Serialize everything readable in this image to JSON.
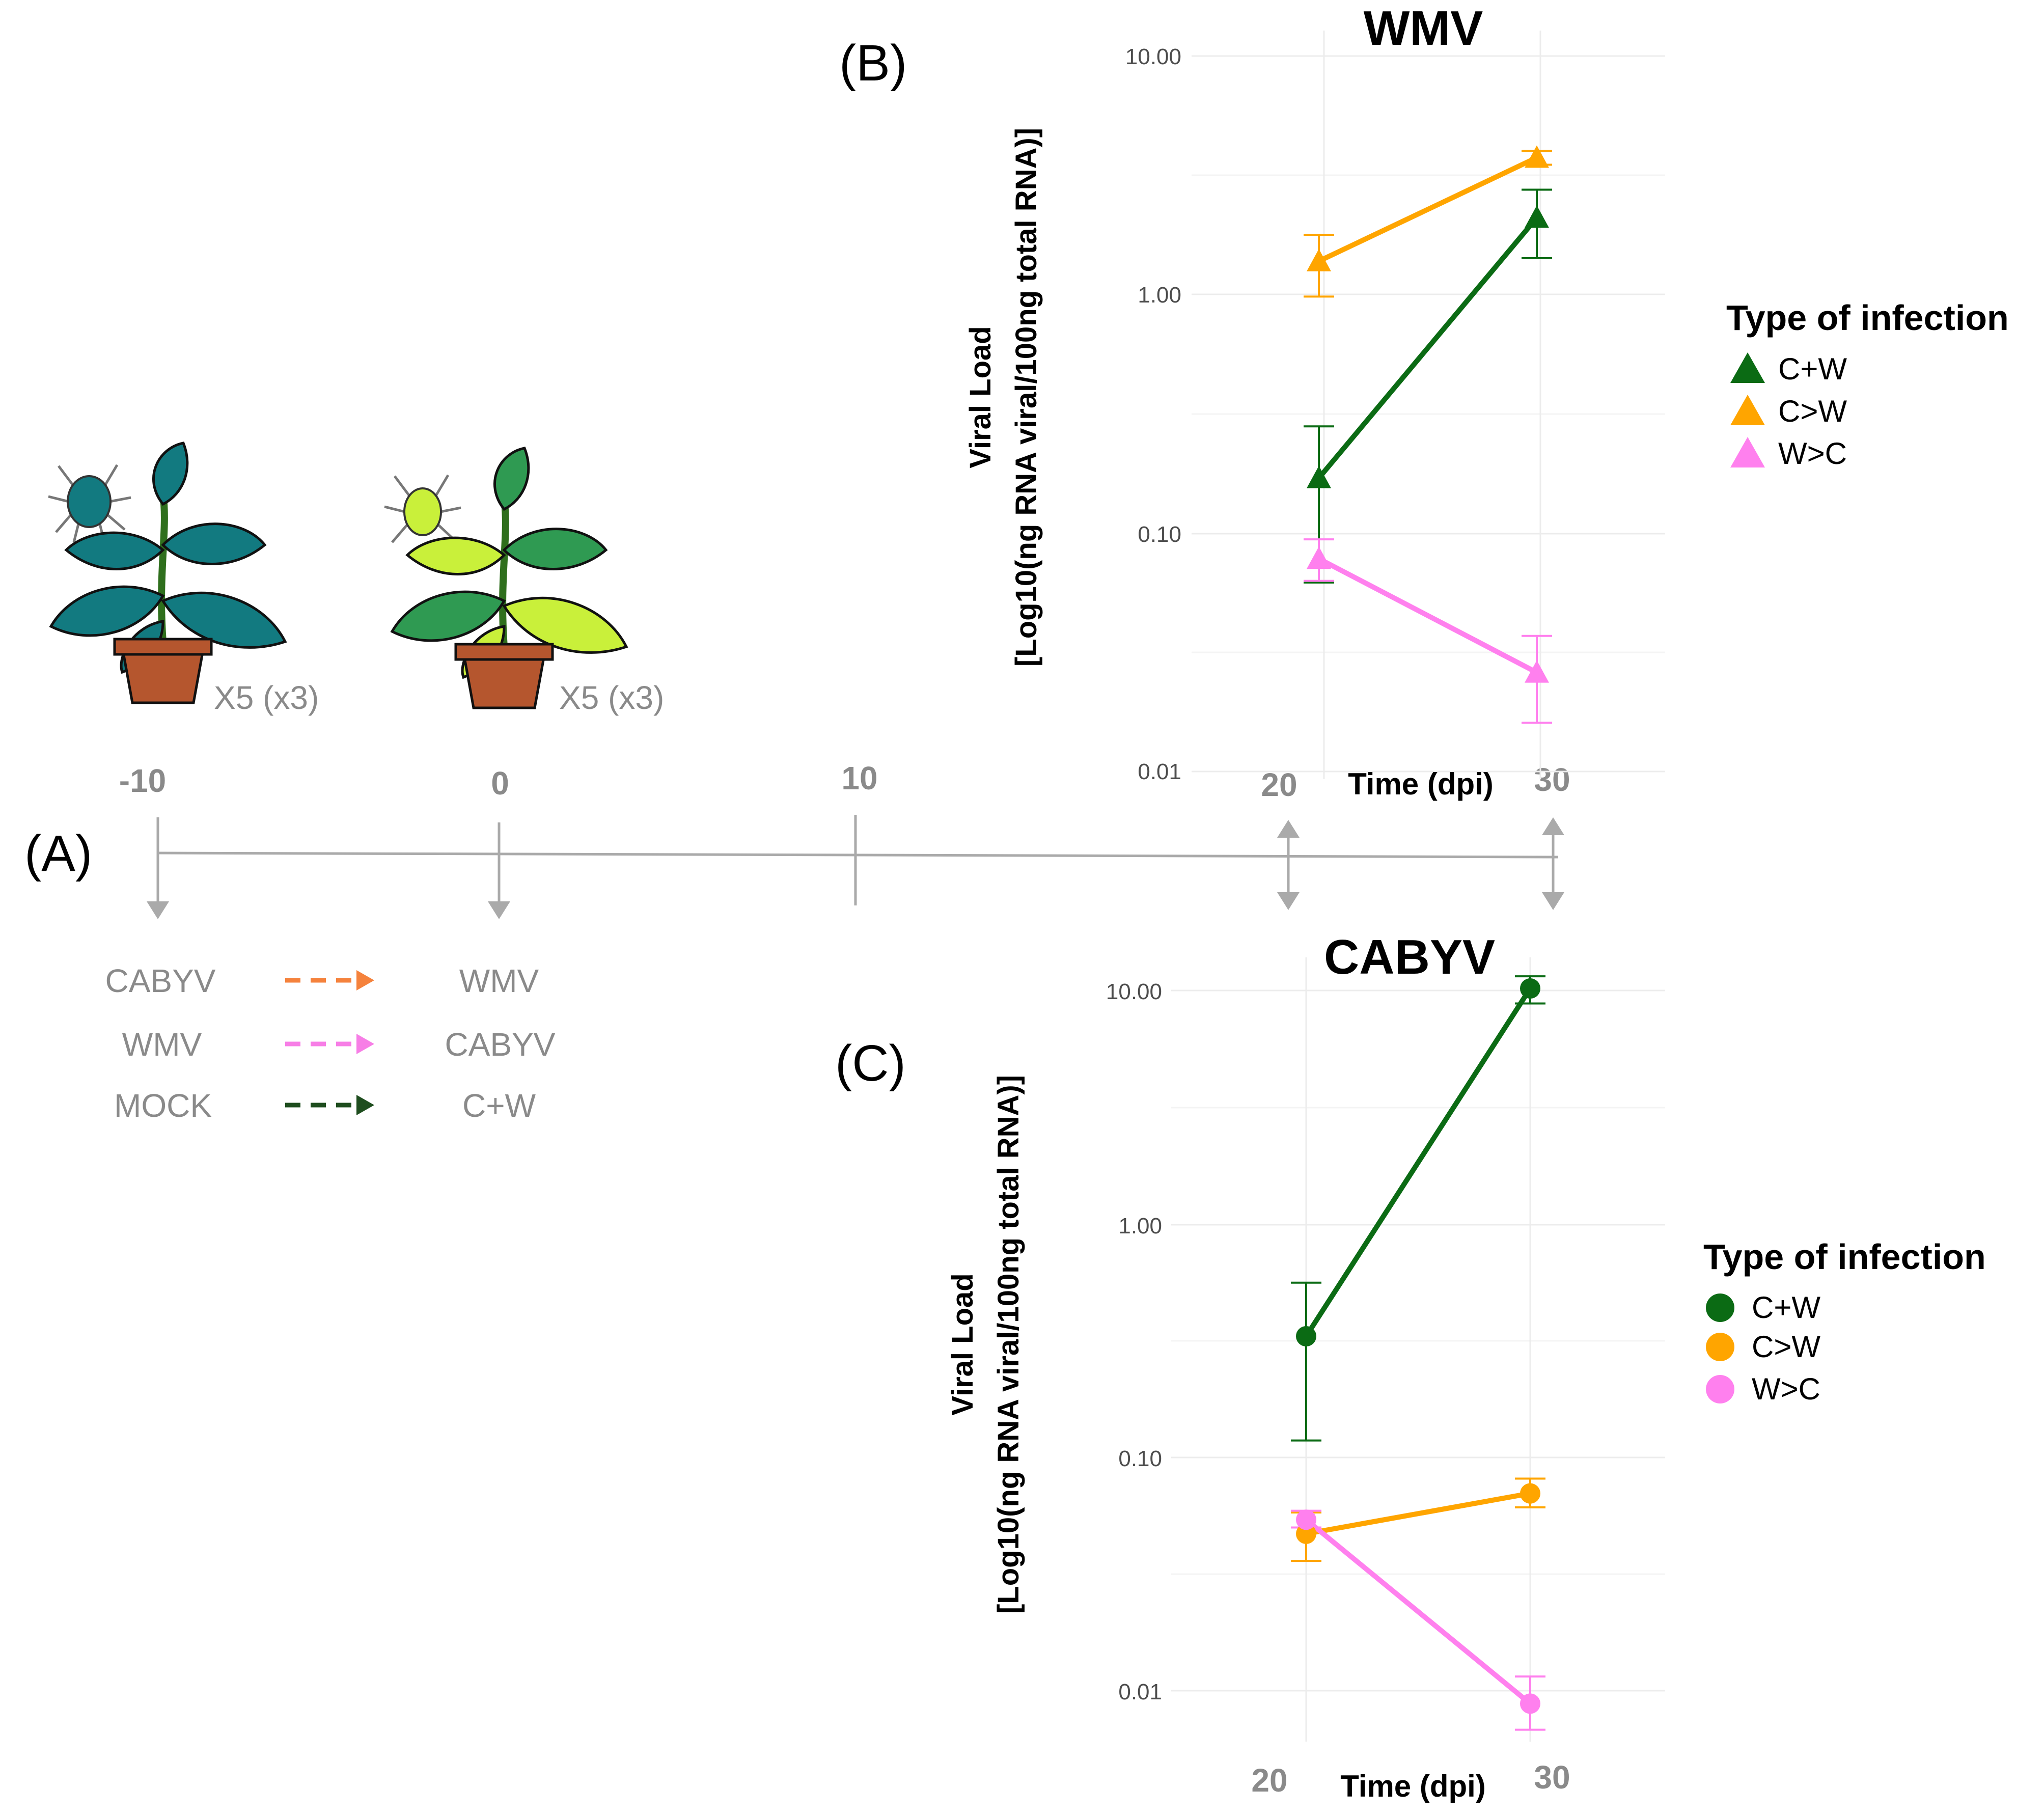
{
  "panels": {
    "A": "(A)",
    "B": "(B)",
    "C": "(C)"
  },
  "timeline": {
    "ticks": [
      "-10",
      "0",
      "10",
      "20",
      "30"
    ],
    "plant_counts": [
      "X5 (x3)",
      "X5 (x3)"
    ],
    "legend": [
      {
        "first": "CABYV",
        "second": "WMV",
        "color": "#f5823c"
      },
      {
        "first": "WMV",
        "second": "CABYV",
        "color": "#f77ee6"
      },
      {
        "first": "MOCK",
        "second": "C+W",
        "color": "#1e4d1e"
      }
    ]
  },
  "colors": {
    "C+W": "#0b6b14",
    "C>W": "#ffa500",
    "W>C": "#ff80ee",
    "plant_teal": "#127a80",
    "plant_lime": "#c9f03a",
    "axis_gray": "#aaaaaa"
  },
  "chart_data": [
    {
      "type": "line",
      "title": "WMV",
      "marker": "triangle",
      "xlabel": "Time (dpi)",
      "ylabel_line1": "Viral Load",
      "ylabel_line2": "[Log10(ng RNA viral/100ng total RNA)]",
      "y_scale": "log10",
      "ylim": [
        0.01,
        10
      ],
      "yticks": [
        "10.00",
        "1.00",
        "0.10",
        "0.01"
      ],
      "x": [
        20,
        30
      ],
      "xticks": [
        "20",
        "30"
      ],
      "legend_title": "Type of infection",
      "series": [
        {
          "name": "C+W",
          "values": [
            0.17,
            2.1
          ],
          "err_low": [
            0.062,
            1.42
          ],
          "err_high": [
            0.28,
            2.75
          ]
        },
        {
          "name": "C>W",
          "values": [
            1.38,
            3.75
          ],
          "err_low": [
            0.98,
            3.5
          ],
          "err_high": [
            1.78,
            4.0
          ]
        },
        {
          "name": "W>C",
          "values": [
            0.078,
            0.026
          ],
          "err_low": [
            0.063,
            0.016
          ],
          "err_high": [
            0.094,
            0.037
          ]
        }
      ]
    },
    {
      "type": "line",
      "title": "CABYV",
      "marker": "circle",
      "xlabel": "Time (dpi)",
      "ylabel_line1": "Viral Load",
      "ylabel_line2": "[Log10(ng RNA viral/100ng total RNA)]",
      "y_scale": "log10",
      "ylim": [
        0.007,
        12
      ],
      "yticks": [
        "10.00",
        "1.00",
        "0.10",
        "0.01"
      ],
      "x": [
        20,
        30
      ],
      "xticks": [
        "20",
        "30"
      ],
      "legend_title": "Type of infection",
      "series": [
        {
          "name": "C+W",
          "values": [
            0.33,
            10.2
          ],
          "err_low": [
            0.118,
            8.8
          ],
          "err_high": [
            0.56,
            11.5
          ]
        },
        {
          "name": "C>W",
          "values": [
            0.047,
            0.07
          ],
          "err_low": [
            0.036,
            0.061
          ],
          "err_high": [
            0.058,
            0.081
          ]
        },
        {
          "name": "W>C",
          "values": [
            0.054,
            0.0088
          ],
          "err_low": [
            0.05,
            0.0068
          ],
          "err_high": [
            0.059,
            0.0115
          ]
        }
      ]
    }
  ]
}
